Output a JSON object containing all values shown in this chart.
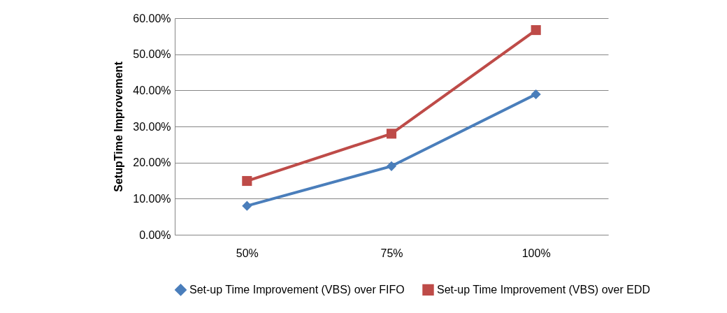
{
  "chart_data": {
    "type": "line",
    "ylabel": "SetupTime Improvement",
    "categories": [
      "50%",
      "75%",
      "100%"
    ],
    "series": [
      {
        "name": "Set-up Time Improvement (VBS) over FIFO",
        "color": "#4a7ebb",
        "marker": "diamond",
        "values": [
          8.0,
          19.0,
          38.9
        ]
      },
      {
        "name": "Set-up Time Improvement (VBS) over EDD",
        "color": "#be4b48",
        "marker": "square",
        "values": [
          14.9,
          28.0,
          56.7
        ]
      }
    ],
    "ylim": [
      0,
      60
    ],
    "yticks": [
      {
        "value": 0,
        "label": "0.00%"
      },
      {
        "value": 10,
        "label": "10.00%"
      },
      {
        "value": 20,
        "label": "20.00%"
      },
      {
        "value": 30,
        "label": "30.00%"
      },
      {
        "value": 40,
        "label": "40.00%"
      },
      {
        "value": 50,
        "label": "50.00%"
      },
      {
        "value": 60,
        "label": "60.00%"
      }
    ],
    "grid": "y",
    "legend": "bottom",
    "line_style": "solid"
  }
}
